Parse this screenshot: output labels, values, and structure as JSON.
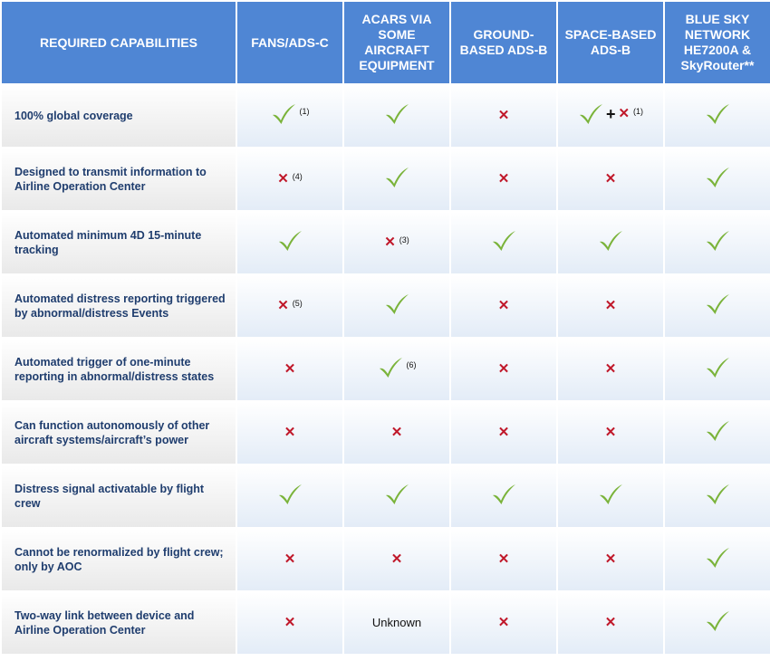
{
  "headers": [
    "REQUIRED CAPABILITIES",
    "FANS/ADS-C",
    "ACARS VIA SOME AIRCRAFT EQUIPMENT",
    "GROUND-BASED ADS-B",
    "SPACE-BASED ADS-B",
    "BLUE SKY NETWORK HE7200A & SkyRouter**"
  ],
  "rows": [
    {
      "label": "100% global coverage",
      "cells": [
        {
          "type": "check",
          "note": "(1)"
        },
        {
          "type": "check"
        },
        {
          "type": "cross"
        },
        {
          "type": "check-plus-cross",
          "note": "(1)"
        },
        {
          "type": "check"
        }
      ]
    },
    {
      "label": "Designed to transmit information to Airline Operation Center",
      "cells": [
        {
          "type": "cross",
          "note": "(4)"
        },
        {
          "type": "check"
        },
        {
          "type": "cross"
        },
        {
          "type": "cross"
        },
        {
          "type": "check"
        }
      ]
    },
    {
      "label": "Automated minimum 4D 15-minute tracking",
      "cells": [
        {
          "type": "check"
        },
        {
          "type": "cross",
          "note": "(3)"
        },
        {
          "type": "check"
        },
        {
          "type": "check"
        },
        {
          "type": "check"
        }
      ]
    },
    {
      "label": "Automated distress reporting triggered by abnormal/distress Events",
      "cells": [
        {
          "type": "cross",
          "note": "(5)"
        },
        {
          "type": "check"
        },
        {
          "type": "cross"
        },
        {
          "type": "cross"
        },
        {
          "type": "check"
        }
      ]
    },
    {
      "label": "Automated trigger of one-minute reporting in abnormal/distress states",
      "cells": [
        {
          "type": "cross"
        },
        {
          "type": "check",
          "note": "(6)"
        },
        {
          "type": "cross"
        },
        {
          "type": "cross"
        },
        {
          "type": "check"
        }
      ]
    },
    {
      "label": "Can function autonomously of other aircraft systems/aircraft’s power",
      "cells": [
        {
          "type": "cross"
        },
        {
          "type": "cross"
        },
        {
          "type": "cross"
        },
        {
          "type": "cross"
        },
        {
          "type": "check"
        }
      ]
    },
    {
      "label": "Distress signal activatable by flight crew",
      "cells": [
        {
          "type": "check"
        },
        {
          "type": "check"
        },
        {
          "type": "check"
        },
        {
          "type": "check"
        },
        {
          "type": "check"
        }
      ]
    },
    {
      "label": "Cannot be renormalized by flight crew; only by AOC",
      "cells": [
        {
          "type": "cross"
        },
        {
          "type": "cross"
        },
        {
          "type": "cross"
        },
        {
          "type": "cross"
        },
        {
          "type": "check"
        }
      ]
    },
    {
      "label": "Two-way link between device and Airline Operation Center",
      "cells": [
        {
          "type": "cross"
        },
        {
          "type": "text",
          "text": "Unknown"
        },
        {
          "type": "cross"
        },
        {
          "type": "cross"
        },
        {
          "type": "check"
        }
      ]
    }
  ],
  "symbols": {
    "cross": "✕",
    "plus": "+"
  },
  "colors": {
    "header_bg": "#4f86d4",
    "check": "#7ab33a",
    "cross": "#c0182a",
    "label_text": "#1f3d6e"
  },
  "icons": {
    "check": "check-icon",
    "cross": "cross-icon"
  }
}
